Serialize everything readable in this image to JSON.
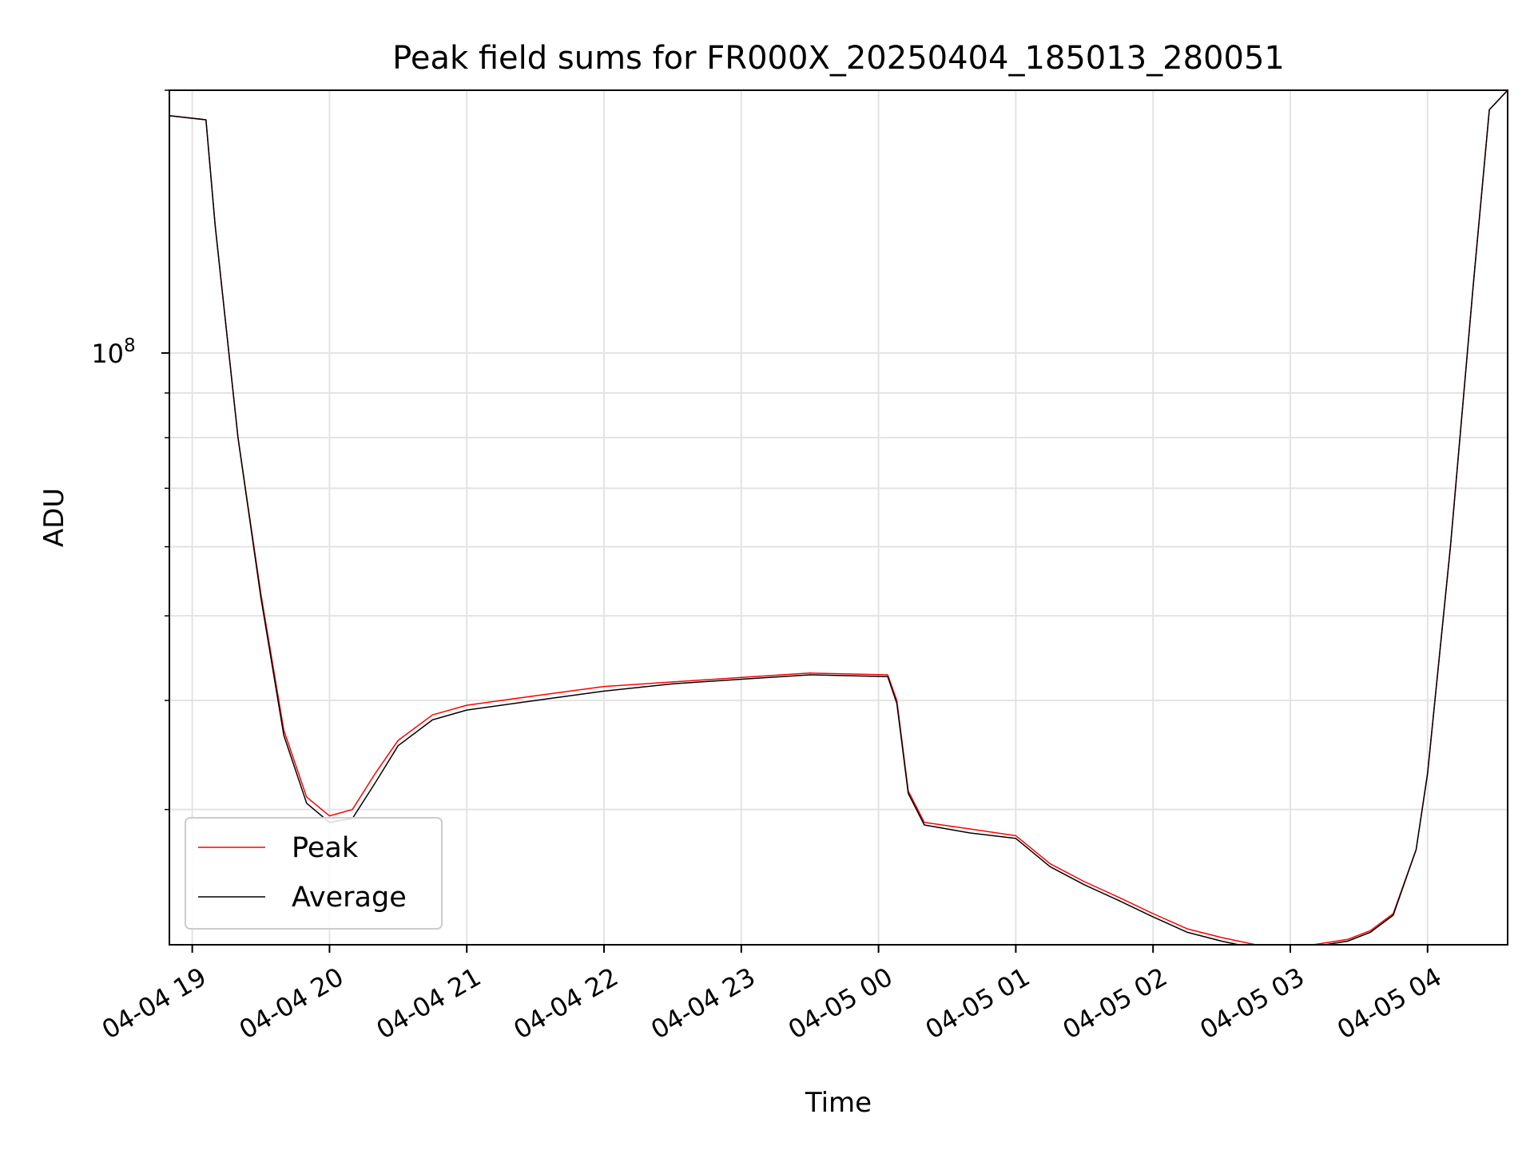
{
  "chart_data": {
    "type": "line",
    "title": "Peak field sums for FR000X_20250404_185013_280051",
    "xlabel": "Time",
    "ylabel": "ADU",
    "y_scale": "log",
    "x_range": [
      "2025-04-04 18:50",
      "2025-04-05 04:35"
    ],
    "ylim": [
      21000000.0,
      200000000.0
    ],
    "grid": true,
    "legend_position": "lower-left",
    "x_tick_labels": [
      "04-04 19",
      "04-04 20",
      "04-04 21",
      "04-04 22",
      "04-04 23",
      "04-05 00",
      "04-05 01",
      "04-05 02",
      "04-05 03",
      "04-05 04"
    ],
    "x_ticks": [
      "2025-04-04 19:00",
      "2025-04-04 20:00",
      "2025-04-04 21:00",
      "2025-04-04 22:00",
      "2025-04-04 23:00",
      "2025-04-05 00:00",
      "2025-04-05 01:00",
      "2025-04-05 02:00",
      "2025-04-05 03:00",
      "2025-04-05 04:00"
    ],
    "y_tick_labels": [
      {
        "base": "10",
        "exp": "8"
      }
    ],
    "y_ticks": [
      100000000
    ],
    "x": [
      "2025-04-04 18:50",
      "2025-04-04 19:06",
      "2025-04-04 19:10",
      "2025-04-04 19:20",
      "2025-04-04 19:30",
      "2025-04-04 19:40",
      "2025-04-04 19:50",
      "2025-04-04 20:00",
      "2025-04-04 20:10",
      "2025-04-04 20:20",
      "2025-04-04 20:30",
      "2025-04-04 20:45",
      "2025-04-04 21:00",
      "2025-04-04 21:30",
      "2025-04-04 22:00",
      "2025-04-04 22:30",
      "2025-04-04 23:00",
      "2025-04-04 23:30",
      "2025-04-05 00:04",
      "2025-04-05 00:08",
      "2025-04-05 00:13",
      "2025-04-05 00:20",
      "2025-04-05 00:40",
      "2025-04-05 01:00",
      "2025-04-05 01:15",
      "2025-04-05 01:30",
      "2025-04-05 01:45",
      "2025-04-05 02:00",
      "2025-04-05 02:15",
      "2025-04-05 02:30",
      "2025-04-05 02:45",
      "2025-04-05 03:00",
      "2025-04-05 03:15",
      "2025-04-05 03:25",
      "2025-04-05 03:35",
      "2025-04-05 03:45",
      "2025-04-05 03:55",
      "2025-04-05 04:00",
      "2025-04-05 04:10",
      "2025-04-05 04:20",
      "2025-04-05 04:27",
      "2025-04-05 04:35"
    ],
    "series": [
      {
        "name": "Peak",
        "color": "#ff0000",
        "values": [
          187000000,
          185000000,
          140000000,
          80000000,
          53000000,
          37000000,
          31000000,
          29500000,
          30000000,
          33000000,
          36000000,
          38500000,
          39500000,
          40500000,
          41500000,
          42000000,
          42500000,
          43000000,
          42800000,
          40000000,
          31500000,
          29000000,
          28500000,
          28000000,
          26000000,
          24800000,
          23800000,
          22800000,
          21900000,
          21400000,
          21000000,
          20800000,
          21100000,
          21300000,
          21800000,
          22800000,
          27000000,
          33000000,
          60000000,
          120000000,
          190000000,
          200000000
        ]
      },
      {
        "name": "Average",
        "color": "#000000",
        "values": [
          187000000,
          185000000,
          140000000,
          80000000,
          52500000,
          36500000,
          30500000,
          29000000,
          29300000,
          32200000,
          35500000,
          38000000,
          39000000,
          40000000,
          41000000,
          41800000,
          42300000,
          42800000,
          42600000,
          39700000,
          31300000,
          28800000,
          28200000,
          27800000,
          25800000,
          24600000,
          23600000,
          22600000,
          21700000,
          21200000,
          20800000,
          20700000,
          21000000,
          21200000,
          21700000,
          22700000,
          27000000,
          33000000,
          60000000,
          120000000,
          190000000,
          200000000
        ]
      }
    ]
  }
}
